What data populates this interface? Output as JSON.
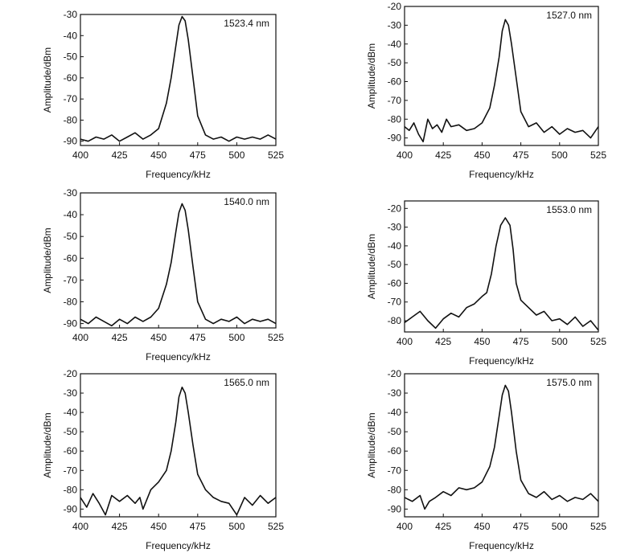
{
  "chart_data": [
    {
      "type": "line",
      "title": "",
      "annotation": "1523.4 nm",
      "xlabel": "Frequency/kHz",
      "ylabel": "Amplitude/dBm",
      "xlim": [
        400,
        525
      ],
      "ylim": [
        -92,
        -30
      ],
      "xticks": [
        "400",
        "425",
        "450",
        "475",
        "500",
        "525"
      ],
      "yticks": [
        "-30",
        "-40",
        "-50",
        "-60",
        "-70",
        "-80",
        "-90"
      ],
      "series": [
        {
          "x": [
            400,
            405,
            410,
            415,
            420,
            425,
            430,
            435,
            440,
            445,
            450,
            455,
            458,
            461,
            463,
            465,
            467,
            469,
            472,
            475,
            480,
            485,
            490,
            495,
            500,
            505,
            510,
            515,
            520,
            525
          ],
          "y": [
            -89,
            -90,
            -88,
            -89,
            -87,
            -90,
            -88,
            -86,
            -89,
            -87,
            -84,
            -72,
            -60,
            -45,
            -35,
            -31,
            -33,
            -42,
            -60,
            -78,
            -87,
            -89,
            -88,
            -90,
            -88,
            -89,
            -88,
            -89,
            -87,
            -89
          ]
        }
      ]
    },
    {
      "type": "line",
      "title": "",
      "annotation": "1527.0 nm",
      "xlabel": "Frequency/kHz",
      "ylabel": "Amplitude/dBm",
      "xlim": [
        400,
        525
      ],
      "ylim": [
        -94,
        -20
      ],
      "xticks": [
        "400",
        "425",
        "450",
        "475",
        "500",
        "525"
      ],
      "yticks": [
        "-20",
        "-30",
        "-40",
        "-50",
        "-60",
        "-70",
        "-80",
        "-90"
      ],
      "series": [
        {
          "x": [
            400,
            403,
            406,
            409,
            412,
            415,
            418,
            421,
            424,
            427,
            430,
            435,
            440,
            445,
            450,
            455,
            458,
            461,
            463,
            465,
            467,
            469,
            472,
            475,
            480,
            485,
            490,
            495,
            500,
            505,
            510,
            515,
            520,
            525
          ],
          "y": [
            -84,
            -86,
            -82,
            -88,
            -92,
            -80,
            -85,
            -83,
            -87,
            -80,
            -84,
            -83,
            -86,
            -85,
            -82,
            -74,
            -62,
            -47,
            -33,
            -27,
            -30,
            -40,
            -58,
            -76,
            -84,
            -82,
            -87,
            -84,
            -88,
            -85,
            -87,
            -86,
            -90,
            -84
          ]
        }
      ]
    },
    {
      "type": "line",
      "title": "",
      "annotation": "1540.0 nm",
      "xlabel": "Frequency/kHz",
      "ylabel": "Amplitude/dBm",
      "xlim": [
        400,
        525
      ],
      "ylim": [
        -92,
        -30
      ],
      "xticks": [
        "400",
        "425",
        "450",
        "475",
        "500",
        "525"
      ],
      "yticks": [
        "-30",
        "-40",
        "-50",
        "-60",
        "-70",
        "-80",
        "-90"
      ],
      "series": [
        {
          "x": [
            400,
            405,
            410,
            415,
            420,
            425,
            430,
            435,
            440,
            445,
            450,
            455,
            458,
            461,
            463,
            465,
            467,
            469,
            472,
            475,
            480,
            485,
            490,
            495,
            500,
            505,
            510,
            515,
            520,
            525
          ],
          "y": [
            -88,
            -90,
            -87,
            -89,
            -91,
            -88,
            -90,
            -87,
            -89,
            -87,
            -83,
            -72,
            -62,
            -48,
            -39,
            -35,
            -38,
            -47,
            -64,
            -80,
            -88,
            -90,
            -88,
            -89,
            -87,
            -90,
            -88,
            -89,
            -88,
            -90
          ]
        }
      ]
    },
    {
      "type": "line",
      "title": "",
      "annotation": "1553.0 nm",
      "xlabel": "Frequency/kHz",
      "ylabel": "Amplitude/dBm",
      "xlim": [
        400,
        525
      ],
      "ylim": [
        -86,
        -16
      ],
      "xticks": [
        "400",
        "425",
        "450",
        "475",
        "500",
        "525"
      ],
      "yticks": [
        "-20",
        "-30",
        "-40",
        "-50",
        "-60",
        "-70",
        "-80"
      ],
      "series": [
        {
          "x": [
            400,
            405,
            410,
            415,
            420,
            425,
            430,
            435,
            440,
            445,
            450,
            453,
            456,
            459,
            462,
            465,
            468,
            470,
            472,
            475,
            480,
            485,
            490,
            495,
            500,
            505,
            510,
            515,
            520,
            525
          ],
          "y": [
            -81,
            -78,
            -75,
            -80,
            -84,
            -79,
            -76,
            -78,
            -73,
            -71,
            -67,
            -65,
            -55,
            -40,
            -29,
            -25,
            -29,
            -42,
            -60,
            -69,
            -73,
            -77,
            -75,
            -80,
            -79,
            -82,
            -78,
            -83,
            -80,
            -85
          ]
        }
      ]
    },
    {
      "type": "line",
      "title": "",
      "annotation": "1565.0 nm",
      "xlabel": "Frequency/kHz",
      "ylabel": "Amplitude/dBm",
      "xlim": [
        400,
        525
      ],
      "ylim": [
        -94,
        -20
      ],
      "xticks": [
        "400",
        "425",
        "450",
        "475",
        "500",
        "525"
      ],
      "yticks": [
        "-20",
        "-30",
        "-40",
        "-50",
        "-60",
        "-70",
        "-80",
        "-90"
      ],
      "series": [
        {
          "x": [
            400,
            404,
            408,
            412,
            416,
            420,
            425,
            430,
            435,
            438,
            440,
            445,
            450,
            455,
            458,
            461,
            463,
            465,
            467,
            469,
            472,
            475,
            480,
            485,
            490,
            495,
            500,
            505,
            510,
            515,
            520,
            525
          ],
          "y": [
            -84,
            -89,
            -82,
            -87,
            -93,
            -83,
            -86,
            -83,
            -87,
            -84,
            -90,
            -80,
            -76,
            -70,
            -60,
            -45,
            -32,
            -27,
            -30,
            -40,
            -57,
            -72,
            -80,
            -84,
            -86,
            -87,
            -93,
            -84,
            -88,
            -83,
            -87,
            -84
          ]
        }
      ]
    },
    {
      "type": "line",
      "title": "",
      "annotation": "1575.0 nm",
      "xlabel": "Frequency/kHz",
      "ylabel": "Amplitude/dBm",
      "xlim": [
        400,
        525
      ],
      "ylim": [
        -94,
        -20
      ],
      "xticks": [
        "400",
        "425",
        "450",
        "475",
        "500",
        "525"
      ],
      "yticks": [
        "-20",
        "-30",
        "-40",
        "-50",
        "-60",
        "-70",
        "-80",
        "-90"
      ],
      "series": [
        {
          "x": [
            400,
            405,
            410,
            413,
            416,
            420,
            425,
            430,
            435,
            440,
            445,
            450,
            455,
            458,
            461,
            463,
            465,
            467,
            469,
            472,
            475,
            480,
            485,
            490,
            495,
            500,
            505,
            510,
            515,
            520,
            525
          ],
          "y": [
            -84,
            -86,
            -83,
            -90,
            -86,
            -84,
            -81,
            -83,
            -79,
            -80,
            -79,
            -76,
            -68,
            -58,
            -42,
            -31,
            -26,
            -29,
            -40,
            -60,
            -75,
            -82,
            -84,
            -81,
            -85,
            -83,
            -86,
            -84,
            -85,
            -82,
            -86
          ]
        }
      ]
    }
  ]
}
